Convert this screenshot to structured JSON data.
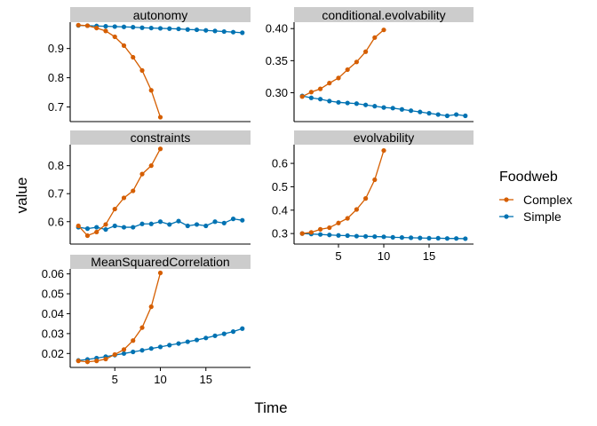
{
  "chart_data": {
    "type": "line",
    "xlabel": "Time",
    "ylabel": "value",
    "legend": {
      "title": "Foodweb",
      "placement": "right",
      "entries": [
        {
          "name": "Complex",
          "color": "#D55E00"
        },
        {
          "name": "Simple",
          "color": "#0072B2"
        }
      ]
    },
    "x_ticks": [
      5,
      10,
      15
    ],
    "panels": [
      {
        "title": "autonomy",
        "yticks": [
          0.7,
          0.8,
          0.9
        ],
        "ytick_labels": [
          "0.7",
          "0.8",
          "0.9"
        ],
        "series": [
          {
            "name": "Complex",
            "x": [
              1,
              2,
              3,
              4,
              5,
              6,
              7,
              8,
              9,
              10
            ],
            "y": [
              0.98,
              0.978,
              0.97,
              0.96,
              0.94,
              0.91,
              0.87,
              0.825,
              0.757,
              0.665
            ]
          },
          {
            "name": "Simple",
            "x": [
              1,
              2,
              3,
              4,
              5,
              6,
              7,
              8,
              9,
              10,
              11,
              12,
              13,
              14,
              15,
              16,
              17,
              18,
              19
            ],
            "y": [
              0.979,
              0.978,
              0.977,
              0.976,
              0.975,
              0.974,
              0.973,
              0.971,
              0.97,
              0.969,
              0.968,
              0.967,
              0.965,
              0.964,
              0.962,
              0.96,
              0.958,
              0.956,
              0.954
            ]
          }
        ]
      },
      {
        "title": "conditional.evolvability",
        "yticks": [
          0.3,
          0.35,
          0.4
        ],
        "ytick_labels": [
          "0.30",
          "0.35",
          "0.40"
        ],
        "series": [
          {
            "name": "Complex",
            "x": [
              1,
              2,
              3,
              4,
              5,
              6,
              7,
              8,
              9,
              10
            ],
            "y": [
              0.294,
              0.301,
              0.306,
              0.315,
              0.323,
              0.336,
              0.348,
              0.364,
              0.386,
              0.398
            ]
          },
          {
            "name": "Simple",
            "x": [
              1,
              2,
              3,
              4,
              5,
              6,
              7,
              8,
              9,
              10,
              11,
              12,
              13,
              14,
              15,
              16,
              17,
              18,
              19
            ],
            "y": [
              0.295,
              0.292,
              0.29,
              0.287,
              0.285,
              0.284,
              0.283,
              0.281,
              0.279,
              0.277,
              0.276,
              0.274,
              0.272,
              0.27,
              0.268,
              0.266,
              0.264,
              0.266,
              0.264
            ]
          }
        ]
      },
      {
        "title": "constraints",
        "yticks": [
          0.6,
          0.7,
          0.8
        ],
        "ytick_labels": [
          "0.6",
          "0.7",
          "0.8"
        ],
        "series": [
          {
            "name": "Complex",
            "x": [
              1,
              2,
              3,
              4,
              5,
              6,
              7,
              8,
              9,
              10
            ],
            "y": [
              0.585,
              0.55,
              0.563,
              0.59,
              0.645,
              0.685,
              0.71,
              0.77,
              0.8,
              0.86
            ]
          },
          {
            "name": "Simple",
            "x": [
              1,
              2,
              3,
              4,
              5,
              6,
              7,
              8,
              9,
              10,
              11,
              12,
              13,
              14,
              15,
              16,
              17,
              18,
              19
            ],
            "y": [
              0.58,
              0.575,
              0.58,
              0.572,
              0.585,
              0.58,
              0.58,
              0.592,
              0.592,
              0.6,
              0.59,
              0.602,
              0.585,
              0.59,
              0.585,
              0.6,
              0.595,
              0.61,
              0.605
            ]
          }
        ]
      },
      {
        "title": "evolvability",
        "yticks": [
          0.3,
          0.4,
          0.5,
          0.6
        ],
        "ytick_labels": [
          "0.3",
          "0.4",
          "0.5",
          "0.6"
        ],
        "series": [
          {
            "name": "Complex",
            "x": [
              1,
              2,
              3,
              4,
              5,
              6,
              7,
              8,
              9,
              10
            ],
            "y": [
              0.3,
              0.305,
              0.318,
              0.325,
              0.345,
              0.365,
              0.403,
              0.45,
              0.53,
              0.655
            ]
          },
          {
            "name": "Simple",
            "x": [
              1,
              2,
              3,
              4,
              5,
              6,
              7,
              8,
              9,
              10,
              11,
              12,
              13,
              14,
              15,
              16,
              17,
              18,
              19
            ],
            "y": [
              0.3,
              0.298,
              0.296,
              0.294,
              0.292,
              0.291,
              0.289,
              0.288,
              0.287,
              0.286,
              0.284,
              0.283,
              0.282,
              0.281,
              0.28,
              0.28,
              0.279,
              0.279,
              0.278
            ]
          }
        ]
      },
      {
        "title": "MeanSquaredCorrelation",
        "yticks": [
          0.02,
          0.03,
          0.04,
          0.05,
          0.06
        ],
        "ytick_labels": [
          "0.02",
          "0.03",
          "0.04",
          "0.05",
          "0.06"
        ],
        "series": [
          {
            "name": "Complex",
            "x": [
              1,
              2,
              3,
              4,
              5,
              6,
              7,
              8,
              9,
              10
            ],
            "y": [
              0.0163,
              0.0158,
              0.0163,
              0.0172,
              0.0195,
              0.022,
              0.0265,
              0.033,
              0.0435,
              0.0605
            ]
          },
          {
            "name": "Simple",
            "x": [
              1,
              2,
              3,
              4,
              5,
              6,
              7,
              8,
              9,
              10,
              11,
              12,
              13,
              14,
              15,
              16,
              17,
              18,
              19
            ],
            "y": [
              0.0165,
              0.017,
              0.0177,
              0.0184,
              0.0192,
              0.02,
              0.0208,
              0.0216,
              0.0225,
              0.0233,
              0.0242,
              0.025,
              0.0259,
              0.0268,
              0.0278,
              0.0289,
              0.0299,
              0.031,
              0.0325
            ]
          }
        ]
      }
    ]
  }
}
